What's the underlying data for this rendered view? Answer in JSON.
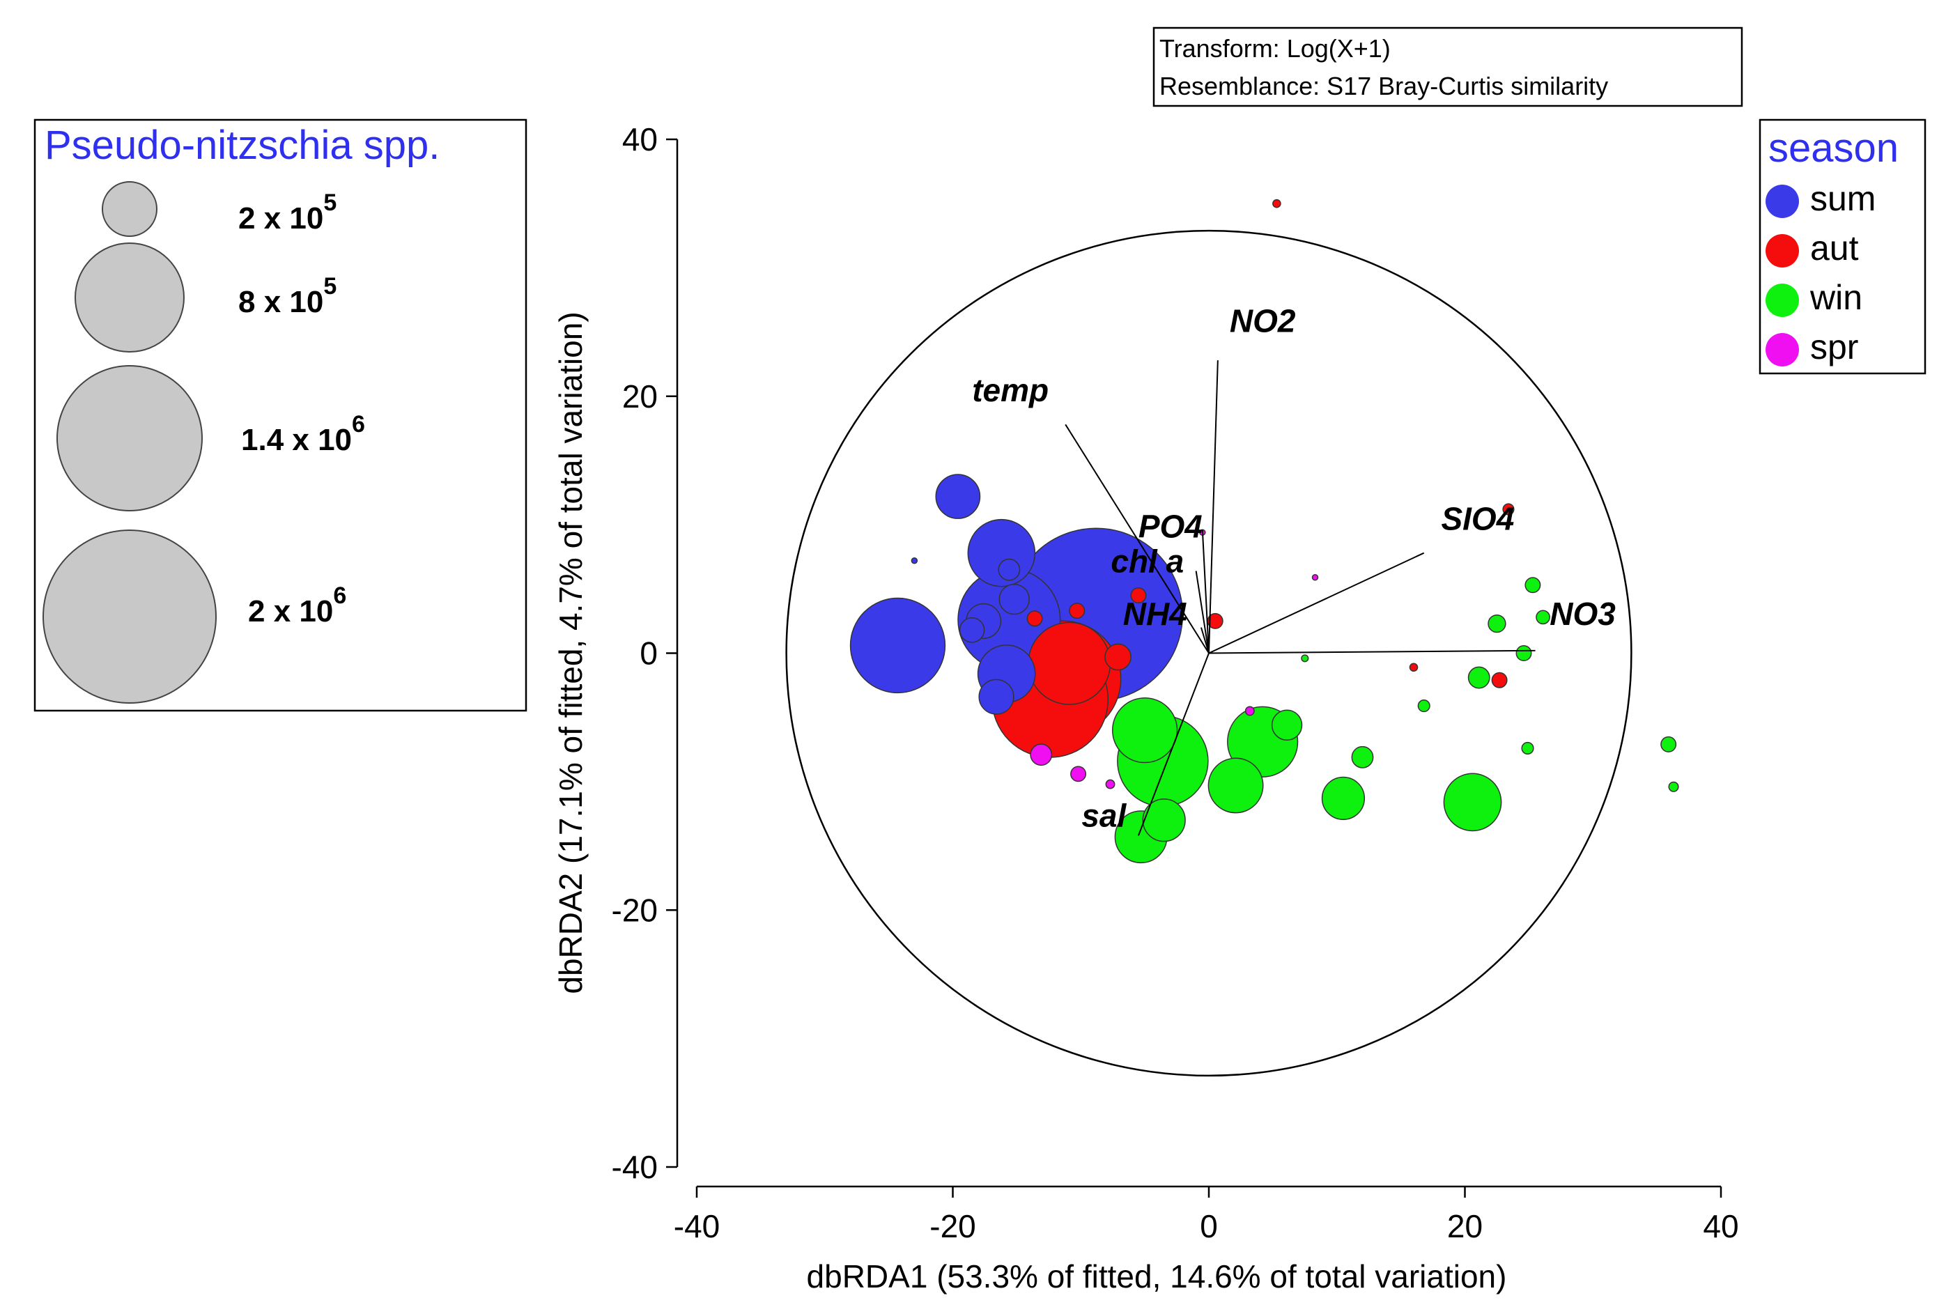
{
  "chart_data": {
    "type": "scatter",
    "subtype": "dbRDA bubble plot",
    "transform_box": {
      "line1": "Transform: Log(X+1)",
      "line2": "Resemblance: S17 Bray-Curtis similarity"
    },
    "xlabel": "dbRDA1 (53.3% of fitted, 14.6% of total variation)",
    "ylabel": "dbRDA2 (17.1% of fitted, 4.7% of total variation)",
    "xlim": [
      -40,
      40
    ],
    "ylim": [
      -40,
      40
    ],
    "x_ticks": [
      -40,
      -20,
      0,
      20,
      40
    ],
    "y_ticks": [
      -40,
      -20,
      0,
      20,
      40
    ],
    "x_tick_labels": [
      "-40",
      "-20",
      "0",
      "20",
      "40"
    ],
    "y_tick_labels": [
      "-40",
      "-20",
      "0",
      "20",
      "40"
    ],
    "correlation_circle_radius": 33,
    "vectors": [
      {
        "label": "temp",
        "x": -11.2,
        "y": 17.8,
        "label_x": -15.5,
        "label_y": 19.6
      },
      {
        "label": "NO2",
        "x": 0.7,
        "y": 22.8,
        "label_x": 4.2,
        "label_y": 25.0
      },
      {
        "label": "PO4",
        "x": -0.5,
        "y": 9.6,
        "label_x": -3.0,
        "label_y": 9.0
      },
      {
        "label": "chl a",
        "x": -1.0,
        "y": 6.4,
        "label_x": -4.8,
        "label_y": 6.3
      },
      {
        "label": "NH4",
        "x": -0.6,
        "y": 2.0,
        "label_x": -4.2,
        "label_y": 2.2
      },
      {
        "label": "SIO4",
        "x": 16.8,
        "y": 7.8,
        "label_x": 21.0,
        "label_y": 9.6
      },
      {
        "label": "NO3",
        "x": 25.5,
        "y": 0.2,
        "label_x": 29.2,
        "label_y": 2.2
      },
      {
        "label": "sal",
        "x": -5.5,
        "y": -14.2,
        "label_x": -8.2,
        "label_y": -13.5
      }
    ],
    "size_legend": {
      "title": "Pseudo-nitzschia spp.",
      "entries": [
        {
          "label": "2 x 10",
          "exp": "5",
          "value": 200000
        },
        {
          "label": "8 x 10",
          "exp": "5",
          "value": 800000
        },
        {
          "label": "1.4 x 10",
          "exp": "6",
          "value": 1400000
        },
        {
          "label": "2 x 10",
          "exp": "6",
          "value": 2000000
        }
      ]
    },
    "legend": {
      "title": "season",
      "placement": "top-right",
      "entries": [
        {
          "label": "sum",
          "color": "#3a3ae8"
        },
        {
          "label": "aut",
          "color": "#f50d0d"
        },
        {
          "label": "win",
          "color": "#0ef00e"
        },
        {
          "label": "spr",
          "color": "#f00ff0"
        }
      ]
    },
    "series": [
      {
        "name": "sum",
        "color": "#3a3ae8",
        "points": [
          {
            "x": -8.8,
            "y": 3.0,
            "size": 2000000
          },
          {
            "x": -24.3,
            "y": 0.6,
            "size": 600000
          },
          {
            "x": -15.6,
            "y": 2.6,
            "size": 700000
          },
          {
            "x": -16.2,
            "y": 7.8,
            "size": 300000
          },
          {
            "x": -19.6,
            "y": 12.2,
            "size": 130000
          },
          {
            "x": -17.6,
            "y": 2.5,
            "size": 80000
          },
          {
            "x": -18.5,
            "y": 1.8,
            "size": 40000
          },
          {
            "x": -15.8,
            "y": -1.6,
            "size": 220000
          },
          {
            "x": -16.6,
            "y": -3.4,
            "size": 80000
          },
          {
            "x": -15.6,
            "y": 6.5,
            "size": 30000
          },
          {
            "x": -23.0,
            "y": 7.2,
            "size": 2000
          },
          {
            "x": -15.2,
            "y": 4.2,
            "size": 60000
          }
        ]
      },
      {
        "name": "aut",
        "color": "#f50d0d",
        "points": [
          {
            "x": -11.4,
            "y": -2.0,
            "size": 900000
          },
          {
            "x": -12.4,
            "y": -3.6,
            "size": 900000
          },
          {
            "x": -10.9,
            "y": -0.8,
            "size": 450000
          },
          {
            "x": -7.1,
            "y": -0.3,
            "size": 45000
          },
          {
            "x": -10.3,
            "y": 3.3,
            "size": 15000
          },
          {
            "x": -13.6,
            "y": 2.7,
            "size": 15000
          },
          {
            "x": -5.5,
            "y": 4.5,
            "size": 15000
          },
          {
            "x": 0.5,
            "y": 2.5,
            "size": 15000
          },
          {
            "x": 5.3,
            "y": 35.0,
            "size": 4000
          },
          {
            "x": 23.4,
            "y": 11.2,
            "size": 8000
          },
          {
            "x": 22.7,
            "y": -2.1,
            "size": 15000
          },
          {
            "x": 16.0,
            "y": -1.1,
            "size": 4000
          }
        ]
      },
      {
        "name": "win",
        "color": "#0ef00e",
        "points": [
          {
            "x": -3.6,
            "y": -8.4,
            "size": 550000
          },
          {
            "x": -5.0,
            "y": -6.0,
            "size": 280000
          },
          {
            "x": 4.2,
            "y": -6.9,
            "size": 330000
          },
          {
            "x": 2.1,
            "y": -10.3,
            "size": 200000
          },
          {
            "x": 20.6,
            "y": -11.6,
            "size": 220000
          },
          {
            "x": -5.3,
            "y": -14.3,
            "size": 180000
          },
          {
            "x": -3.5,
            "y": -13.0,
            "size": 120000
          },
          {
            "x": 10.5,
            "y": -11.3,
            "size": 120000
          },
          {
            "x": 6.1,
            "y": -5.6,
            "size": 60000
          },
          {
            "x": 12.0,
            "y": -8.1,
            "size": 30000
          },
          {
            "x": 21.1,
            "y": -1.9,
            "size": 30000
          },
          {
            "x": 22.5,
            "y": 2.3,
            "size": 20000
          },
          {
            "x": 25.3,
            "y": 5.3,
            "size": 15000
          },
          {
            "x": 24.6,
            "y": 0.0,
            "size": 15000
          },
          {
            "x": 26.1,
            "y": 2.8,
            "size": 12000
          },
          {
            "x": 16.8,
            "y": -4.1,
            "size": 9000
          },
          {
            "x": 24.9,
            "y": -7.4,
            "size": 9000
          },
          {
            "x": 35.9,
            "y": -7.1,
            "size": 15000
          },
          {
            "x": 36.3,
            "y": -10.4,
            "size": 6000
          },
          {
            "x": 7.5,
            "y": -0.4,
            "size": 3000
          }
        ]
      },
      {
        "name": "spr",
        "color": "#f00ff0",
        "points": [
          {
            "x": -13.1,
            "y": -7.9,
            "size": 30000
          },
          {
            "x": -10.2,
            "y": -9.4,
            "size": 15000
          },
          {
            "x": -7.7,
            "y": -10.2,
            "size": 5000
          },
          {
            "x": 3.2,
            "y": -4.5,
            "size": 5000
          },
          {
            "x": 8.3,
            "y": 5.9,
            "size": 2000
          },
          {
            "x": -0.5,
            "y": 9.4,
            "size": 2000
          }
        ]
      }
    ]
  }
}
